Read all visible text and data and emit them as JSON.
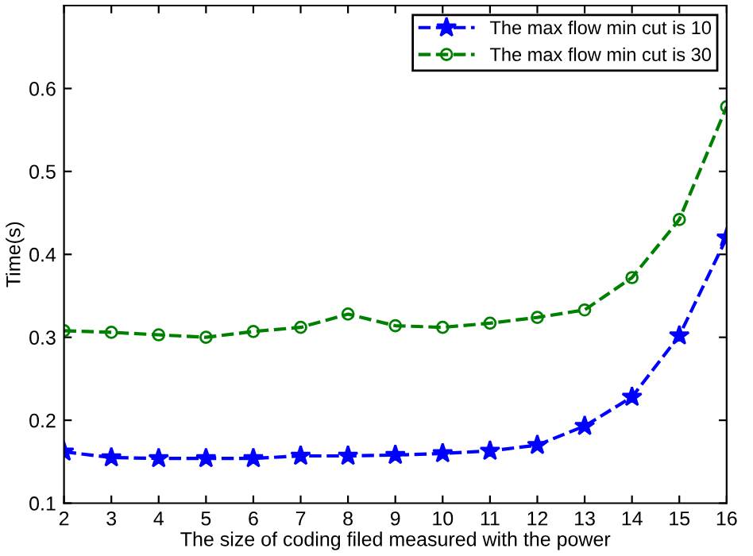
{
  "chart_data": {
    "type": "line",
    "xlabel": "The size of coding filed measured with the power",
    "ylabel": "Time(s)",
    "x": [
      2,
      3,
      4,
      5,
      6,
      7,
      8,
      9,
      10,
      11,
      12,
      13,
      14,
      15,
      16
    ],
    "series": [
      {
        "name": "The max flow min cut is 10",
        "color": "#0000ff",
        "marker": "star",
        "values": [
          0.162,
          0.155,
          0.154,
          0.154,
          0.154,
          0.157,
          0.157,
          0.158,
          0.16,
          0.163,
          0.17,
          0.193,
          0.228,
          0.302,
          0.42
        ]
      },
      {
        "name": "The max flow min cut is 30",
        "color": "#008000",
        "marker": "circle",
        "values": [
          0.308,
          0.306,
          0.303,
          0.3,
          0.307,
          0.312,
          0.328,
          0.314,
          0.312,
          0.317,
          0.324,
          0.333,
          0.372,
          0.442,
          0.578
        ]
      }
    ],
    "line_style": "dashed",
    "xlim": [
      2,
      16
    ],
    "ylim": [
      0.1,
      0.7
    ],
    "xticks": [
      2,
      3,
      4,
      5,
      6,
      7,
      8,
      9,
      10,
      11,
      12,
      13,
      14,
      15,
      16
    ],
    "yticks": [
      0.1,
      0.2,
      0.3,
      0.4,
      0.5,
      0.6
    ],
    "grid": false,
    "legend": "top right"
  }
}
